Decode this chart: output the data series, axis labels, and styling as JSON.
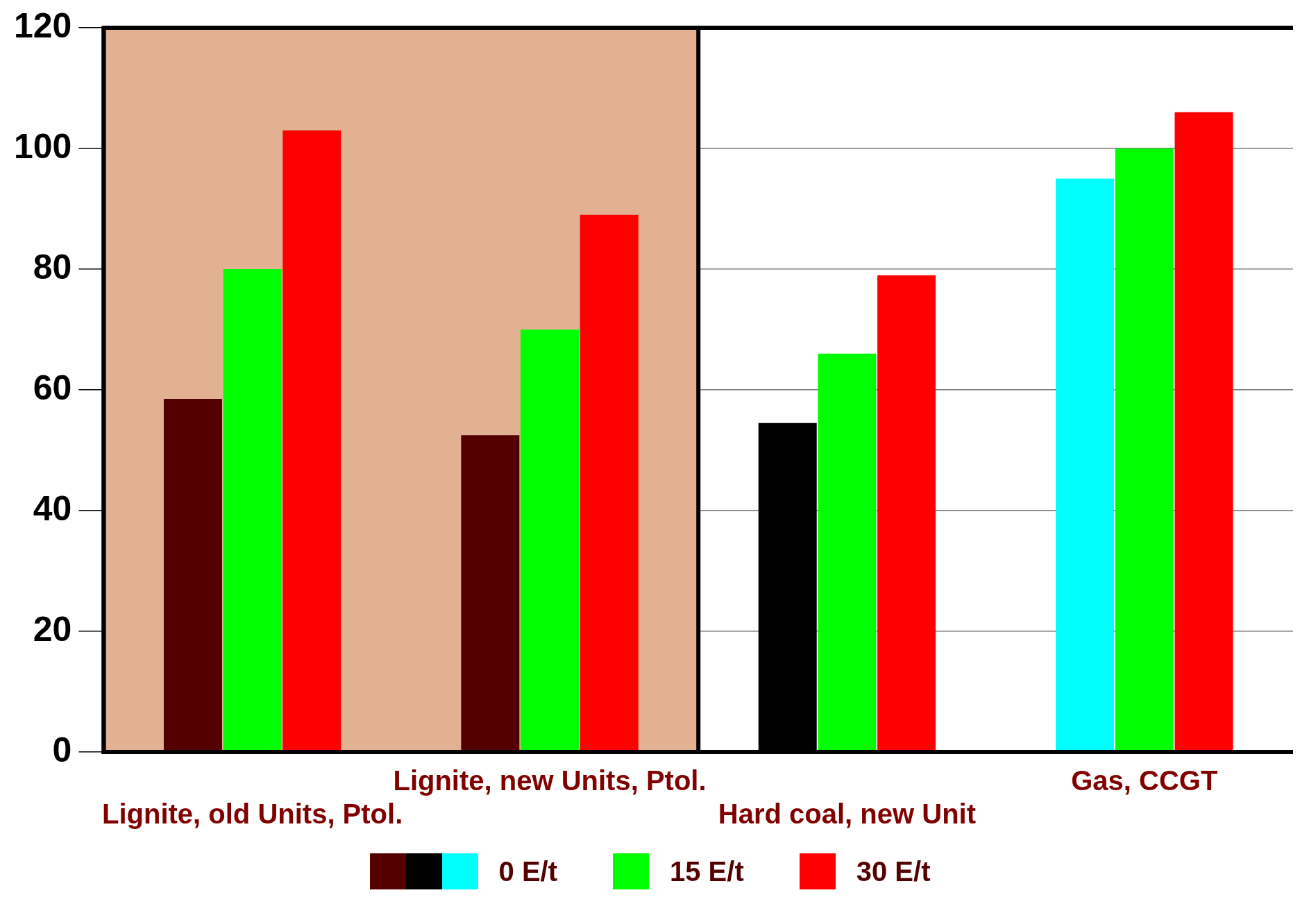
{
  "chart_data": {
    "type": "bar",
    "categories": [
      "Lignite, old Units, Ptol.",
      "Lignite, new Units, Ptol.",
      "Hard coal, new Unit",
      "Gas, CCGT"
    ],
    "series": [
      {
        "name": "0 E/t",
        "colors": [
          "#550000",
          "#550000",
          "#000000",
          "#00ffff"
        ],
        "values": [
          58.5,
          52.5,
          54.5,
          95
        ]
      },
      {
        "name": "15 E/t",
        "color": "#00ff00",
        "values": [
          80,
          70,
          66,
          100
        ]
      },
      {
        "name": "30 E/t",
        "color": "#ff0000",
        "values": [
          103,
          89,
          79,
          106
        ]
      }
    ],
    "ylim": [
      0,
      120
    ],
    "yticks": [
      0,
      20,
      40,
      60,
      80,
      100,
      120
    ],
    "grid": "y",
    "legend": "bottom",
    "bands": [
      {
        "axis": "x",
        "from": "Lignite, old Units, Ptol.",
        "to": "Lignite, new Units, Ptol.",
        "color": "#e1b191"
      }
    ]
  }
}
